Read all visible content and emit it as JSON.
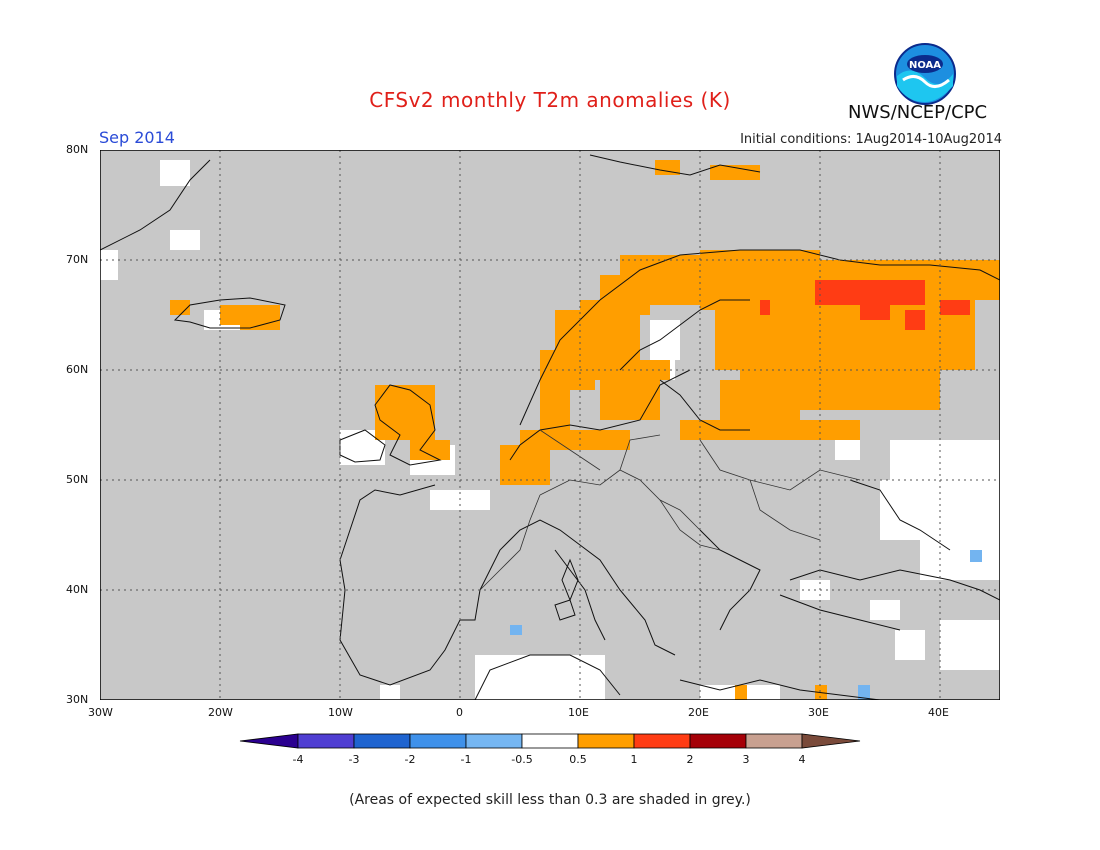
{
  "header": {
    "title": "CFSv2 monthly T2m anomalies (K)",
    "month": "Sep 2014",
    "initial_conditions": "Initial conditions: 1Aug2014-10Aug2014",
    "org": "NWS/NCEP/CPC",
    "logo_text": "NOAA"
  },
  "map": {
    "lat_labels": [
      "80N",
      "70N",
      "60N",
      "50N",
      "40N",
      "30N"
    ],
    "lon_labels": [
      "30W",
      "20W",
      "10W",
      "0",
      "10E",
      "20E",
      "30E",
      "40E"
    ],
    "background_color": "#c8c8c8",
    "colors": {
      "grey_low_skill": "#c8c8c8",
      "neutral": "#ffffff",
      "warm_0_5_1": "#ff9e00",
      "warm_1_2": "#ff3c14",
      "cool_minus1_minus0_5": "#73b4f0"
    }
  },
  "colorbar": {
    "tick_labels": [
      "-4",
      "-3",
      "-2",
      "-1",
      "-0.5",
      "0.5",
      "1",
      "2",
      "3",
      "4"
    ],
    "colors": [
      "#2b0090",
      "#4f3ed2",
      "#1f64d0",
      "#3f91ea",
      "#75b6f2",
      "#ffffff",
      "#ff9e00",
      "#ff3c14",
      "#a50008",
      "#c8a090",
      "#7a4a3a"
    ]
  },
  "footnote": "(Areas of expected skill less than 0.3 are shaded in grey.)"
}
